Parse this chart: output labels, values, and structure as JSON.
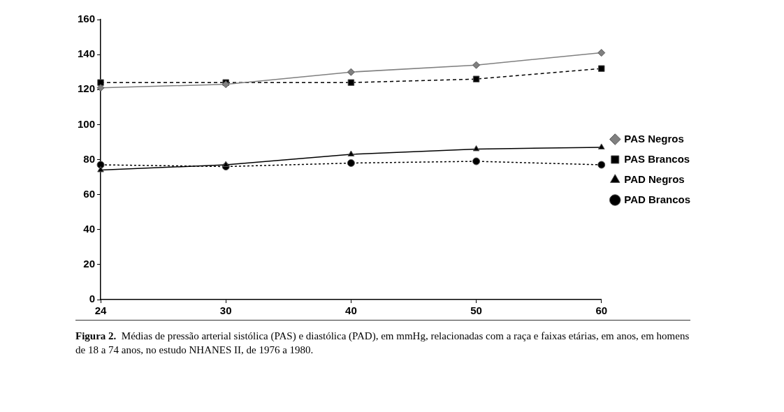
{
  "chart_data": {
    "type": "line",
    "categories": [
      "24",
      "30",
      "40",
      "50",
      "60"
    ],
    "ylim": [
      0,
      160
    ],
    "yticks": [
      0,
      20,
      40,
      60,
      80,
      100,
      120,
      140,
      160
    ],
    "grid": false,
    "legend": "right",
    "series": [
      {
        "name": "PAS Negros",
        "color": "#808080",
        "marker": "diamond",
        "line_style": "solid",
        "values": [
          121,
          123,
          130,
          134,
          141
        ]
      },
      {
        "name": "PAS Brancos",
        "color": "#000000",
        "marker": "square",
        "line_style": "dashed",
        "values": [
          124,
          124,
          124,
          126,
          132
        ]
      },
      {
        "name": "PAD Negros",
        "color": "#000000",
        "marker": "triangle",
        "line_style": "solid",
        "values": [
          74,
          77,
          83,
          86,
          87
        ]
      },
      {
        "name": "PAD Brancos",
        "color": "#000000",
        "marker": "circle",
        "line_style": "dotted",
        "values": [
          77,
          76,
          78,
          79,
          77
        ]
      }
    ],
    "annotations": [
      "Figura 2.",
      "Médias de pressão arterial sistólica (PAS) e diastólica (PAD), em mmHg, relacionadas com a raça e faixas etárias, em anos, em homens de 18 a 74 anos, no estudo NHANES II, de 1976 a 1980."
    ]
  }
}
